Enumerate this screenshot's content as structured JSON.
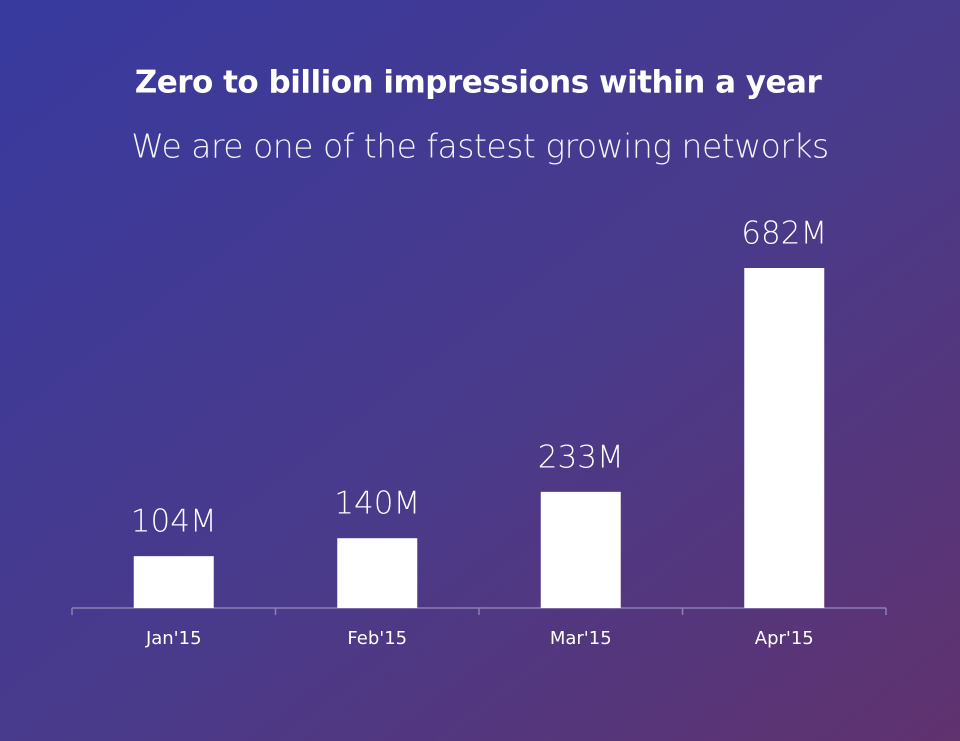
{
  "chart_data": {
    "type": "bar",
    "title": "Zero to billion impressions within a year",
    "subtitle": "We are one of the fastest growing networks",
    "categories": [
      "Jan'15",
      "Feb'15",
      "Mar'15",
      "Apr'15"
    ],
    "values": [
      104,
      140,
      233,
      682
    ],
    "value_labels": [
      "104M",
      "140M",
      "233M",
      "682M"
    ],
    "color": "#ffffff"
  }
}
